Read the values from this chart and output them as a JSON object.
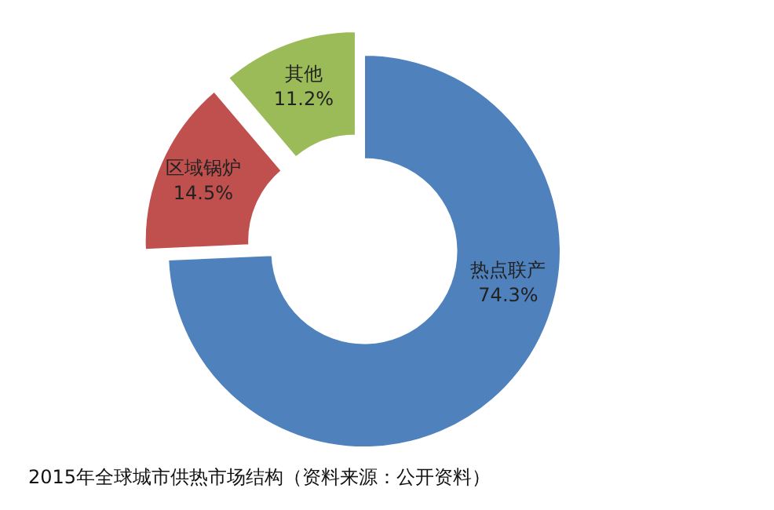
{
  "chart_data": {
    "type": "donut",
    "title": "2015年全球城市供热市场结构（资料来源：公开资料）",
    "categories": [
      "热点联产",
      "区域锅炉",
      "其他"
    ],
    "values": [
      74.3,
      14.5,
      11.2
    ],
    "colors": [
      "#4f81bd",
      "#c0504d",
      "#9bbb59"
    ],
    "value_labels": [
      "74.3%",
      "14.5%",
      "11.2%"
    ]
  }
}
